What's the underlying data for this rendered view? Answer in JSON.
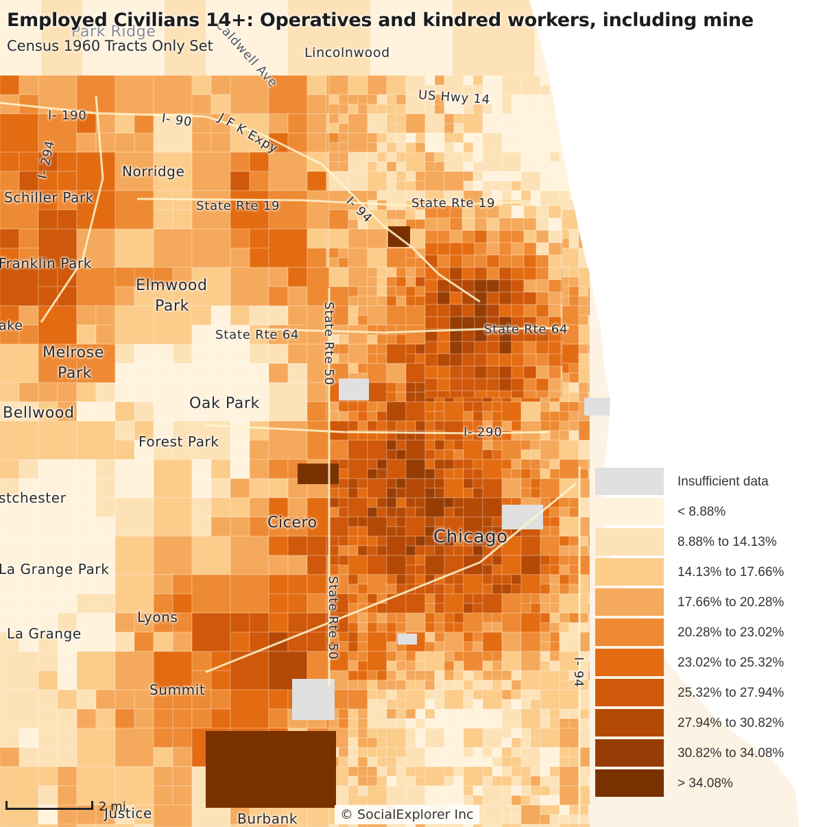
{
  "title": "Employed Civilians 14+: Operatives and kindred workers, including mine",
  "subtitle": "Census 1960 Tracts Only Set",
  "colors": {
    "background": "#fdf3e4",
    "water": "#ffffff",
    "classes": [
      "#e0e0e0",
      "#fff3dd",
      "#fde2b8",
      "#fbcc8a",
      "#f5a95c",
      "#ee8a33",
      "#e36c12",
      "#cf580a",
      "#b44906",
      "#963d05",
      "#7a3100"
    ]
  },
  "legend": {
    "items": [
      {
        "label": "Insufficient data"
      },
      {
        "label": "< 8.88%"
      },
      {
        "label": "8.88% to 14.13%"
      },
      {
        "label": "14.13% to 17.66%"
      },
      {
        "label": "17.66% to 20.28%"
      },
      {
        "label": "20.28% to 23.02%"
      },
      {
        "label": "23.02% to 25.32%"
      },
      {
        "label": "25.32% to 27.94%"
      },
      {
        "label": "27.94% to 30.82%"
      },
      {
        "label": "30.82% to 34.08%"
      },
      {
        "label": "> 34.08%"
      }
    ]
  },
  "places": {
    "park_ridge": "Park Ridge",
    "lincolnwood": "Lincolnwood",
    "norridge": "Norridge",
    "schiller_park": "Schiller Park",
    "franklin_park": "Franklin Park",
    "elmwood_park_1": "Elmwood",
    "elmwood_park_2": "Park",
    "lake": "ake",
    "melrose_park_1": "Melrose",
    "melrose_park_2": "Park",
    "bellwood": "Bellwood",
    "oak_park": "Oak Park",
    "forest_park": "Forest Park",
    "westchester": "stchester",
    "cicero": "Cicero",
    "chicago": "Chicago",
    "la_grange_park": "La Grange Park",
    "lyons": "Lyons",
    "la_grange": "La Grange",
    "summit": "Summit",
    "justice": "Justice",
    "burbank": "Burbank"
  },
  "roads": {
    "i190": "I- 190",
    "i90": "I- 90",
    "jfk": "J F K Expy",
    "i294": "I- 294",
    "caldwell": "Caldwell Ave",
    "us14": "US Hwy 14",
    "sr19_west": "State Rte 19",
    "i94_north": "I- 94",
    "sr19_east": "State Rte 19",
    "sr64_west": "State Rte 64",
    "sr64_east": "State Rte 64",
    "sr50_north": "State Rte 50",
    "i290": "I- 290",
    "sr50_south": "State Rte 50",
    "i94_south": "I- 94"
  },
  "scale": {
    "label": "2 mi"
  },
  "credit": "© SocialExplorer Inc"
}
